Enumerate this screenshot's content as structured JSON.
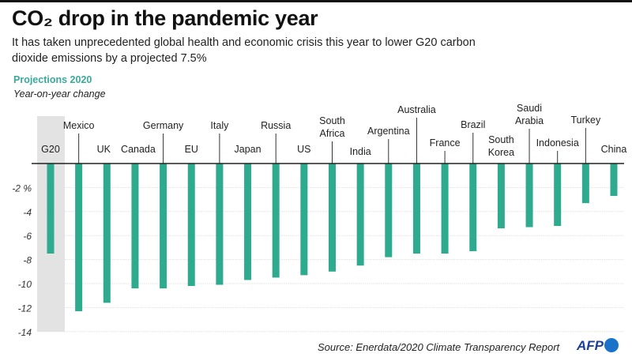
{
  "title": "CO₂ drop in the pandemic year",
  "subtitle": "It has taken unprecedented global health and economic crisis this year to lower G20 carbon dioxide emissions by a projected 7.5%",
  "section_label": "Projections 2020",
  "section_sublabel": "Year-on-year change",
  "source": "Source: Enerdata/2020 Climate Transparency Report",
  "logo": "AFP",
  "colors": {
    "bar": "#2eaa8e",
    "highlight_band": "#e3e3e3",
    "accent": "#3aa99a"
  },
  "chart_data": {
    "type": "bar",
    "title": "CO₂ drop in the pandemic year",
    "ylabel": "",
    "xlabel": "",
    "unit_label": "%",
    "categories": [
      "G20",
      "Mexico",
      "UK",
      "Canada",
      "Germany",
      "EU",
      "Italy",
      "Japan",
      "Russia",
      "US",
      "South Africa",
      "India",
      "Argentina",
      "Australia",
      "France",
      "Brazil",
      "South Korea",
      "Saudi Arabia",
      "Indonesia",
      "Turkey",
      "China"
    ],
    "values": [
      -7.5,
      -12.3,
      -11.6,
      -10.4,
      -10.4,
      -10.2,
      -10.1,
      -9.7,
      -9.5,
      -9.3,
      -9.0,
      -8.5,
      -7.8,
      -7.5,
      -7.5,
      -7.3,
      -5.4,
      -5.3,
      -5.2,
      -3.3,
      -2.7
    ],
    "highlighted_category": "G20",
    "ylim": [
      -14,
      0
    ],
    "yticks": [
      -2,
      -4,
      -6,
      -8,
      -10,
      -12,
      -14
    ],
    "ytick_labels": [
      "-2 %",
      "-4",
      "-6",
      "-8",
      "-10",
      "-12",
      "-14"
    ],
    "grid": true
  }
}
